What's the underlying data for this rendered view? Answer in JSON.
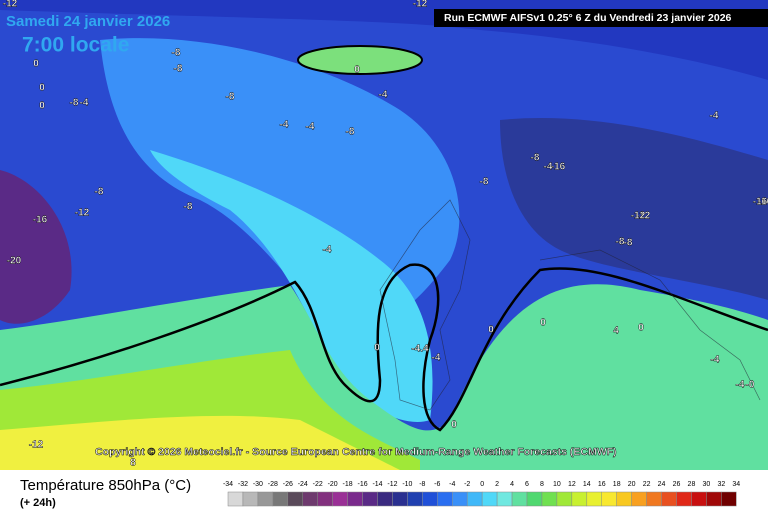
{
  "header": {
    "date": "Samedi 24 janvier 2026",
    "time": "7:00 locale",
    "run": "Run ECMWF AIFSv1 0.25° 6 Z du Vendredi 23 janvier 2026"
  },
  "copyright": "Copyright © 2026 Meteociel.fr - Source European Centre for Medium-Range Weather Forecasts (ECMWF)",
  "map": {
    "contour_labels": [
      "-12",
      "-12",
      "-8",
      "-8",
      "0",
      "-8",
      "-8",
      "-4",
      "-4",
      "0",
      "0",
      "0",
      "-4",
      "-4",
      "-4",
      "-8",
      "-8",
      "-4",
      "-8",
      "-16",
      "-8",
      "-12",
      "-16",
      "-20",
      "-8",
      "-4",
      "-8",
      "-16",
      "-12",
      "-8",
      "-4",
      "0",
      "-4.4",
      "-4",
      "0",
      "0",
      "4",
      "0",
      "0",
      "-4",
      "-12",
      "8",
      "-0",
      "-16",
      "-12"
    ]
  },
  "legend": {
    "title": "Température 850hPa (°C)",
    "subtitle": "(+ 24h)",
    "steps": [
      {
        "value": -34,
        "color": "#d8d8d8"
      },
      {
        "value": -32,
        "color": "#b8b8b8"
      },
      {
        "value": -30,
        "color": "#989898"
      },
      {
        "value": -28,
        "color": "#787878"
      },
      {
        "value": -26,
        "color": "#5a4a5a"
      },
      {
        "value": -24,
        "color": "#6e3a6e"
      },
      {
        "value": -22,
        "color": "#82307e"
      },
      {
        "value": -20,
        "color": "#9a3096"
      },
      {
        "value": -18,
        "color": "#7a2a8c"
      },
      {
        "value": -16,
        "color": "#5a2a86"
      },
      {
        "value": -14,
        "color": "#3a2a80"
      },
      {
        "value": -12,
        "color": "#2a3090"
      },
      {
        "value": -10,
        "color": "#2040b0"
      },
      {
        "value": -8,
        "color": "#2050d8"
      },
      {
        "value": -6,
        "color": "#2a6ef0"
      },
      {
        "value": -4,
        "color": "#3a90f8"
      },
      {
        "value": -2,
        "color": "#40b8f8"
      },
      {
        "value": 0,
        "color": "#50d8f8"
      },
      {
        "value": 2,
        "color": "#70e8e0"
      },
      {
        "value": 4,
        "color": "#60e0a0"
      },
      {
        "value": 6,
        "color": "#50d870"
      },
      {
        "value": 8,
        "color": "#70e050"
      },
      {
        "value": 10,
        "color": "#a0e838"
      },
      {
        "value": 12,
        "color": "#c8f030"
      },
      {
        "value": 14,
        "color": "#e8f030"
      },
      {
        "value": 16,
        "color": "#f8e830"
      },
      {
        "value": 18,
        "color": "#f8c820"
      },
      {
        "value": 20,
        "color": "#f8a020"
      },
      {
        "value": 22,
        "color": "#f07820"
      },
      {
        "value": 24,
        "color": "#e85020"
      },
      {
        "value": 26,
        "color": "#e02818"
      },
      {
        "value": 28,
        "color": "#c81010"
      },
      {
        "value": 30,
        "color": "#a00808"
      },
      {
        "value": 32,
        "color": "#700000"
      },
      {
        "value": 34,
        "color": "#300000"
      }
    ]
  }
}
